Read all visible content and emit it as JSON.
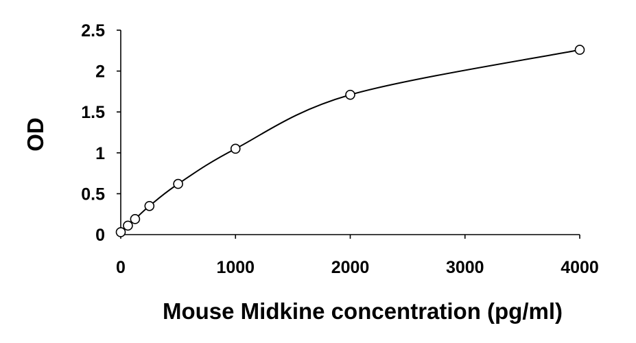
{
  "chart_data": {
    "type": "scatter",
    "title": "",
    "xlabel": "Mouse Midkine concentration (pg/ml)",
    "ylabel": "OD",
    "xlim": [
      0,
      4000
    ],
    "ylim": [
      0,
      2.5
    ],
    "xticks": [
      0,
      1000,
      2000,
      3000,
      4000
    ],
    "xtick_labels": [
      "0",
      "1000",
      "2000",
      "3000",
      "4000"
    ],
    "yticks": [
      0,
      0.5,
      1,
      1.5,
      2,
      2.5
    ],
    "ytick_labels": [
      "0",
      "0.5",
      "1",
      "1.5",
      "2",
      "2.5"
    ],
    "grid": false,
    "legend": "none",
    "trendline": "smooth fitted curve through points",
    "series": [
      {
        "x": [
          0,
          62.5,
          125,
          250,
          500,
          1000,
          2000,
          4000
        ],
        "y": [
          0.03,
          0.11,
          0.19,
          0.35,
          0.62,
          1.05,
          1.71,
          2.26
        ]
      }
    ]
  }
}
